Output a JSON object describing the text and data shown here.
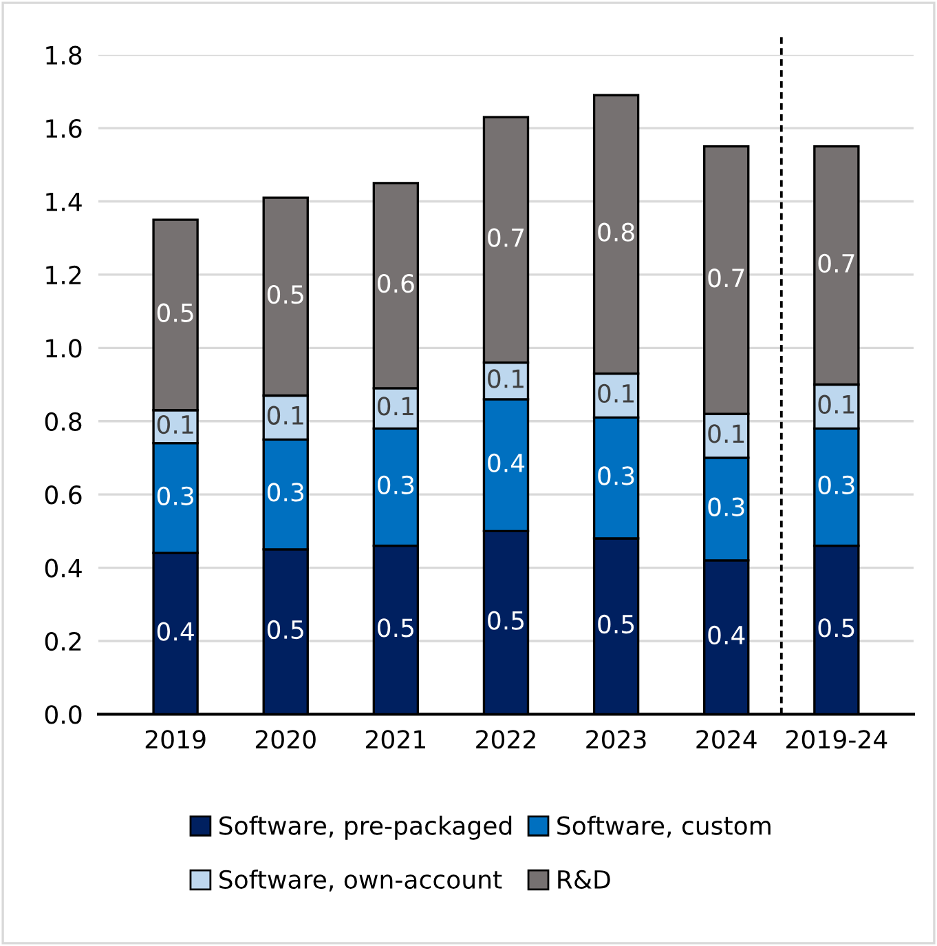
{
  "chart_data": {
    "type": "bar",
    "stacked": true,
    "categories": [
      "2019",
      "2020",
      "2021",
      "2022",
      "2023",
      "2024",
      "2019-24"
    ],
    "series": [
      {
        "name": "Software, pre-packaged",
        "color": "#002060",
        "values": [
          0.44,
          0.45,
          0.46,
          0.5,
          0.48,
          0.42,
          0.46
        ],
        "value_labels": [
          "0.4",
          "0.5",
          "0.5",
          "0.5",
          "0.5",
          "0.4",
          "0.5"
        ]
      },
      {
        "name": "Software, custom",
        "color": "#0070c0",
        "values": [
          0.3,
          0.3,
          0.32,
          0.36,
          0.33,
          0.28,
          0.32
        ],
        "value_labels": [
          "0.3",
          "0.3",
          "0.3",
          "0.4",
          "0.3",
          "0.3",
          "0.3"
        ]
      },
      {
        "name": "Software, own-account",
        "color": "#bdd7ee",
        "values": [
          0.09,
          0.12,
          0.11,
          0.1,
          0.12,
          0.12,
          0.12
        ],
        "value_labels": [
          "0.1",
          "0.1",
          "0.1",
          "0.1",
          "0.1",
          "0.1",
          "0.1"
        ]
      },
      {
        "name": "R&D",
        "color": "#767171",
        "values": [
          0.52,
          0.54,
          0.56,
          0.67,
          0.76,
          0.73,
          0.65
        ],
        "value_labels": [
          "0.5",
          "0.5",
          "0.6",
          "0.7",
          "0.8",
          "0.7",
          "0.7"
        ]
      }
    ],
    "ylim": [
      0,
      1.8
    ],
    "yticks": [
      {
        "value": 0,
        "label": "0.0"
      },
      {
        "value": 0.2,
        "label": "0.2"
      },
      {
        "value": 0.4,
        "label": "0.4"
      },
      {
        "value": 0.6,
        "label": "0.6"
      },
      {
        "value": 0.8,
        "label": "0.8"
      },
      {
        "value": 1.0,
        "label": "1.0"
      },
      {
        "value": 1.2,
        "label": "1.2"
      },
      {
        "value": 1.4,
        "label": "1.4"
      },
      {
        "value": 1.6,
        "label": "1.6"
      },
      {
        "value": 1.8,
        "label": "1.8"
      }
    ],
    "grid": "y",
    "legend": "bottom"
  }
}
